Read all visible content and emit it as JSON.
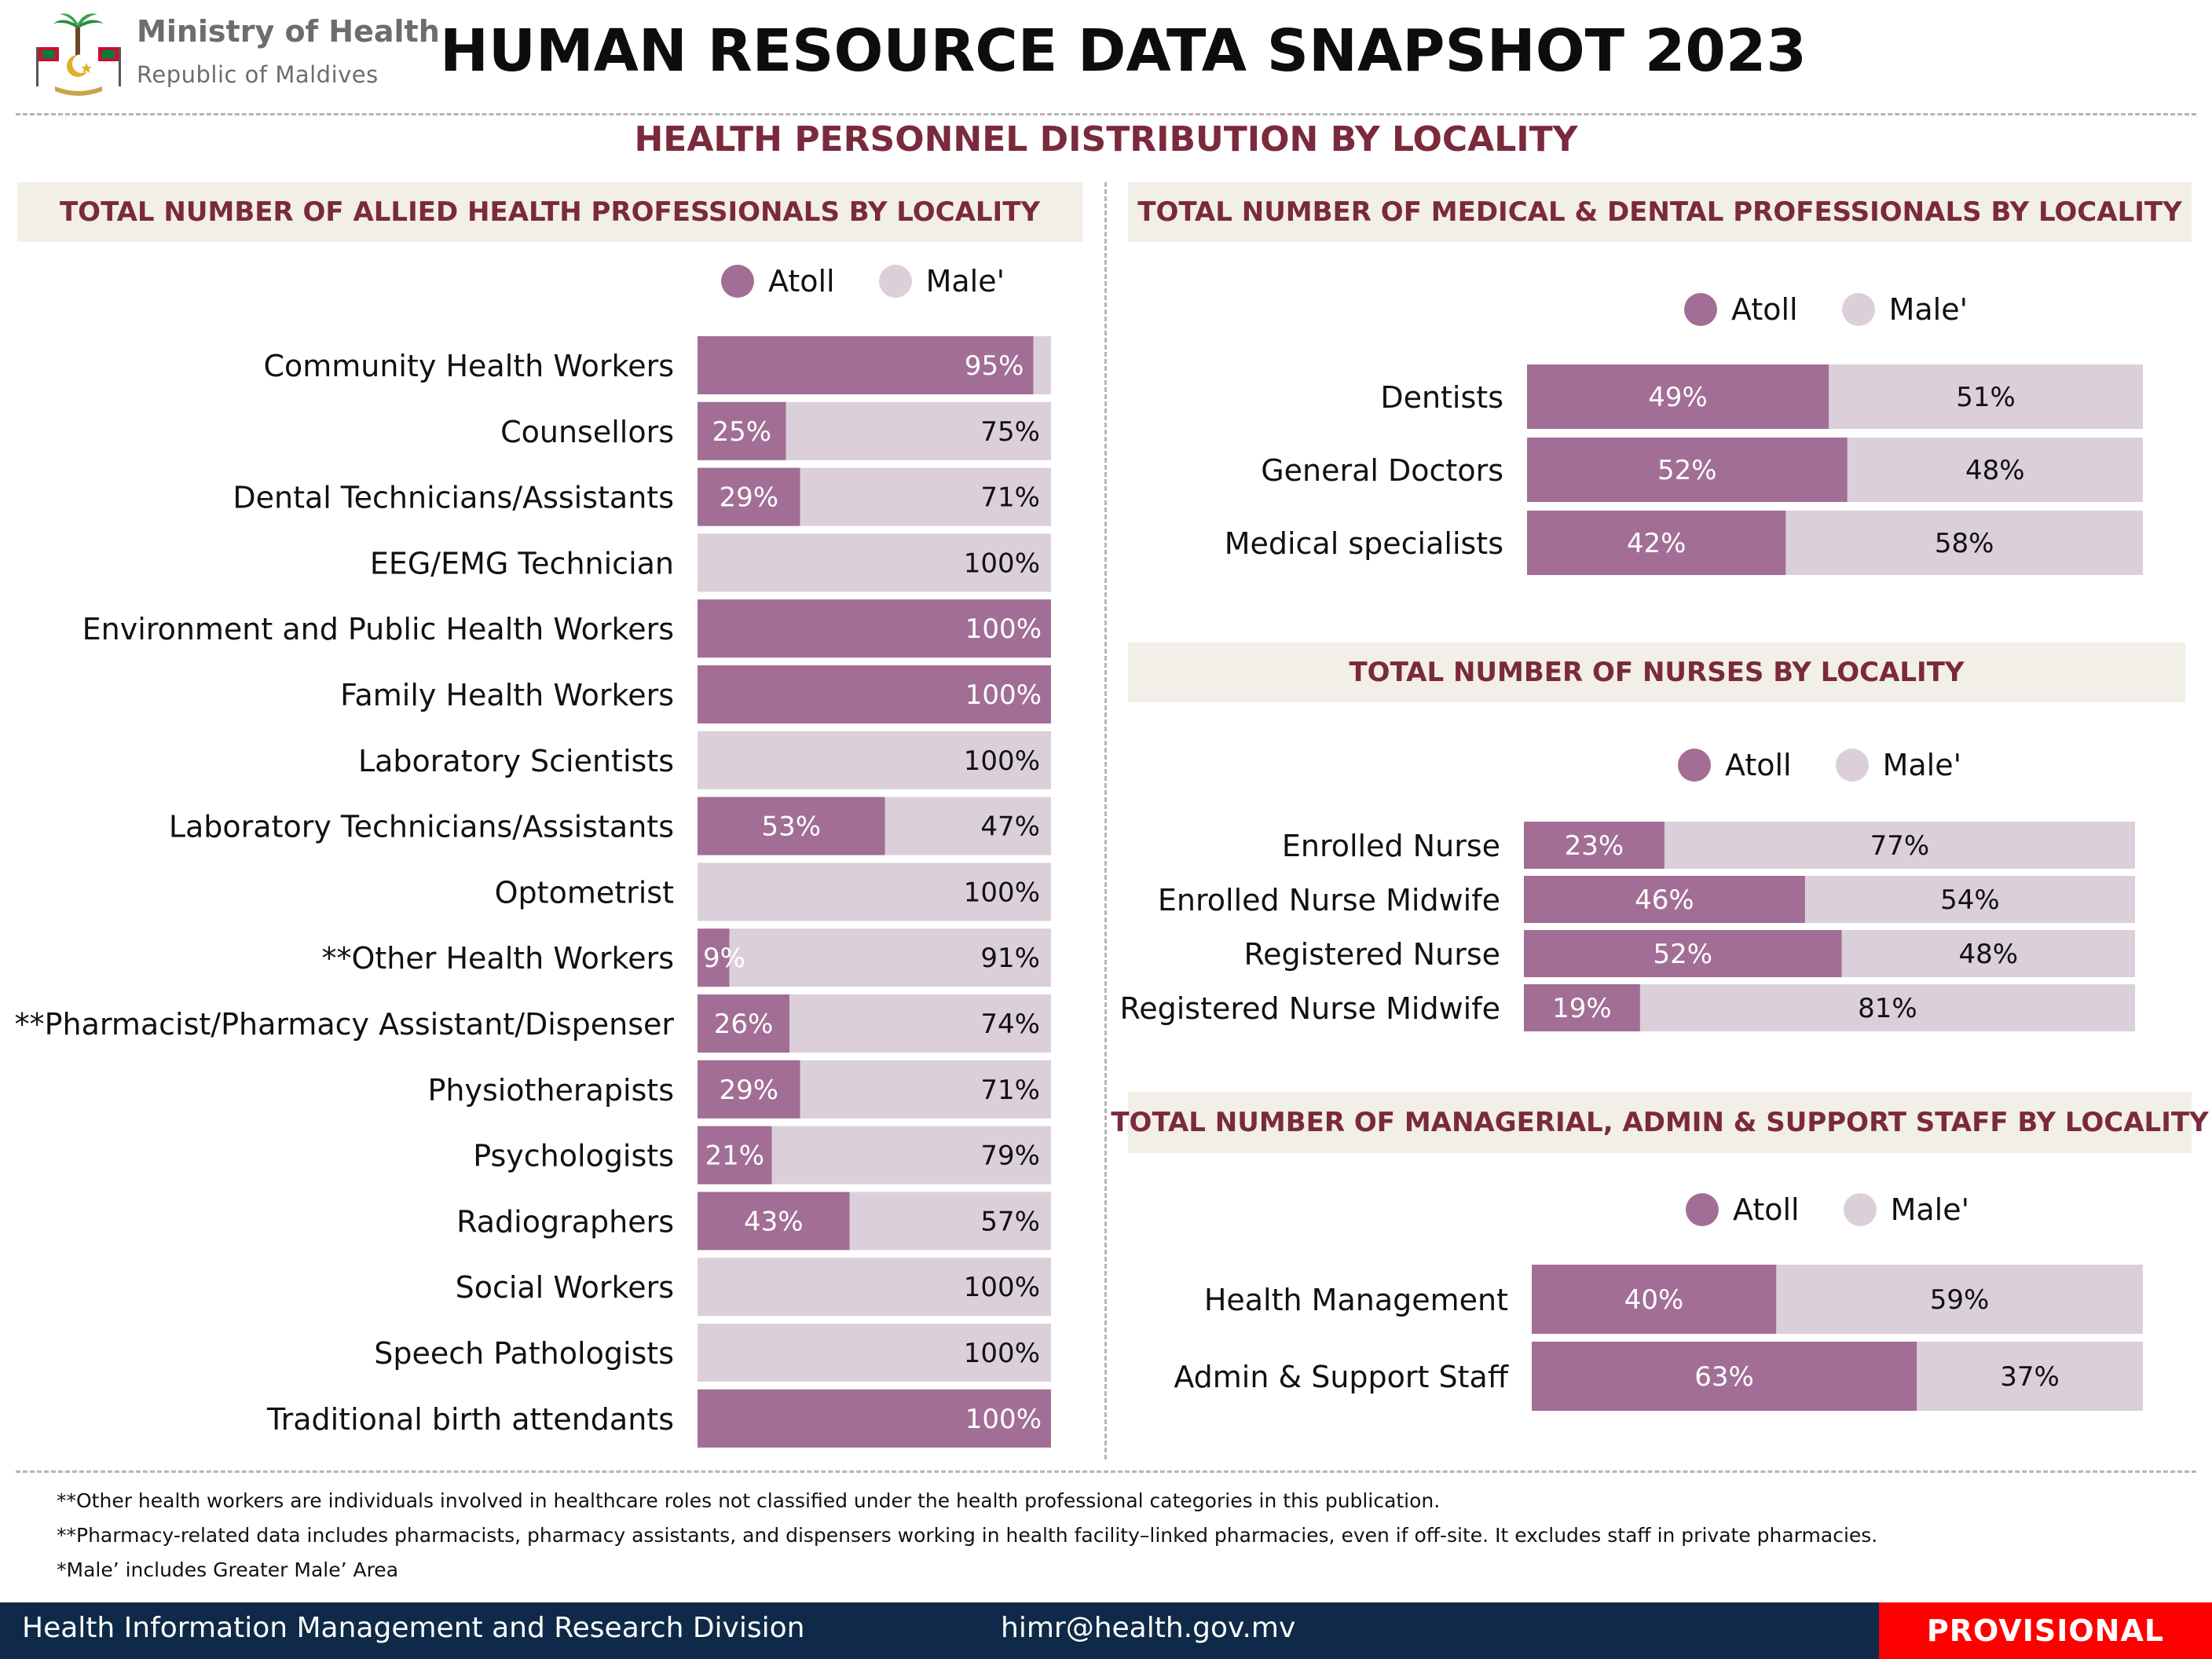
{
  "header": {
    "org_name": "Ministry of Health",
    "org_sub": "Republic of Maldives",
    "title": "HUMAN RESOURCE DATA SNAPSHOT 2023",
    "subtitle": "HEALTH PERSONNEL DISTRIBUTION BY LOCALITY"
  },
  "colors": {
    "atoll": "#a26e95",
    "male": "#dbd0da",
    "accent": "#7a2a3b",
    "footer": "#0e2a48",
    "badge": "#ff0000"
  },
  "legend": {
    "atoll": "Atoll",
    "male": "Male'"
  },
  "chart_data": [
    {
      "id": "allied",
      "type": "bar",
      "orientation": "horizontal",
      "stacked": true,
      "title": "TOTAL NUMBER OF ALLIED HEALTH PROFESSIONALS BY LOCALITY",
      "categories": [
        "Community Health Workers",
        "Counsellors",
        "Dental Technicians/Assistants",
        "EEG/EMG Technician",
        "Environment and Public Health Workers",
        "Family Health Workers",
        "Laboratory Scientists",
        "Laboratory Technicians/Assistants",
        "Optometrist",
        "**Other Health Workers",
        "**Pharmacist/Pharmacy Assistant/Dispenser",
        "Physiotherapists",
        "Psychologists",
        "Radiographers",
        "Social Workers",
        "Speech Pathologists",
        "Traditional birth attendants"
      ],
      "series": [
        {
          "name": "Atoll",
          "values": [
            95,
            25,
            29,
            0,
            100,
            100,
            0,
            53,
            0,
            9,
            26,
            29,
            21,
            43,
            0,
            0,
            100
          ]
        },
        {
          "name": "Male'",
          "values": [
            5,
            75,
            71,
            100,
            0,
            0,
            100,
            47,
            100,
            91,
            74,
            71,
            79,
            57,
            100,
            100,
            0
          ]
        }
      ],
      "labels": [
        [
          "95%",
          ""
        ],
        [
          "25%",
          "75%"
        ],
        [
          "29%",
          "71%"
        ],
        [
          "",
          "100%"
        ],
        [
          "100%",
          ""
        ],
        [
          "100%",
          ""
        ],
        [
          "",
          "100%"
        ],
        [
          "53%",
          "47%"
        ],
        [
          "",
          "100%"
        ],
        [
          "9%",
          "91%"
        ],
        [
          "26%",
          "74%"
        ],
        [
          "29%",
          "71%"
        ],
        [
          "21%",
          "79%"
        ],
        [
          "43%",
          "57%"
        ],
        [
          "",
          "100%"
        ],
        [
          "",
          "100%"
        ],
        [
          "100%",
          ""
        ]
      ],
      "unit": "%",
      "xlim": [
        0,
        100
      ],
      "legend": "top"
    },
    {
      "id": "medical",
      "type": "bar",
      "orientation": "horizontal",
      "stacked": true,
      "title": "TOTAL NUMBER OF MEDICAL & DENTAL PROFESSIONALS BY LOCALITY",
      "categories": [
        "Dentists",
        "General Doctors",
        "Medical specialists"
      ],
      "series": [
        {
          "name": "Atoll",
          "values": [
            49,
            52,
            42
          ]
        },
        {
          "name": "Male'",
          "values": [
            51,
            48,
            58
          ]
        }
      ],
      "labels": [
        [
          "49%",
          "51%"
        ],
        [
          "52%",
          "48%"
        ],
        [
          "42%",
          "58%"
        ]
      ],
      "unit": "%",
      "xlim": [
        0,
        100
      ],
      "legend": "top"
    },
    {
      "id": "nurses",
      "type": "bar",
      "orientation": "horizontal",
      "stacked": true,
      "title": "TOTAL NUMBER OF NURSES BY LOCALITY",
      "categories": [
        "Enrolled Nurse",
        "Enrolled Nurse Midwife",
        "Registered Nurse",
        "Registered Nurse Midwife"
      ],
      "series": [
        {
          "name": "Atoll",
          "values": [
            23,
            46,
            52,
            19
          ]
        },
        {
          "name": "Male'",
          "values": [
            77,
            54,
            48,
            81
          ]
        }
      ],
      "labels": [
        [
          "23%",
          "77%"
        ],
        [
          "46%",
          "54%"
        ],
        [
          "52%",
          "48%"
        ],
        [
          "19%",
          "81%"
        ]
      ],
      "unit": "%",
      "xlim": [
        0,
        100
      ],
      "legend": "top"
    },
    {
      "id": "managerial",
      "type": "bar",
      "orientation": "horizontal",
      "stacked": true,
      "title": "TOTAL NUMBER OF MANAGERIAL, ADMIN & SUPPORT STAFF BY LOCALITY",
      "categories": [
        "Health Management",
        "Admin & Support Staff"
      ],
      "series": [
        {
          "name": "Atoll",
          "values": [
            40,
            63
          ]
        },
        {
          "name": "Male'",
          "values": [
            59,
            37
          ]
        }
      ],
      "labels": [
        [
          "40%",
          "59%"
        ],
        [
          "63%",
          "37%"
        ]
      ],
      "unit": "%",
      "xlim": [
        0,
        100
      ],
      "legend": "top"
    }
  ],
  "notes": [
    "**Other health workers are individuals involved in healthcare roles not classified under the health professional categories in this publication.",
    "**Pharmacy-related data includes pharmacists, pharmacy assistants, and dispensers working in health facility–linked pharmacies, even if off-site. It excludes staff in private pharmacies.",
    "*Male’ includes Greater Male’ Area"
  ],
  "footer": {
    "division": "Health Information Management and Research Division",
    "email": "himr@health.gov.mv",
    "status": "PROVISIONAL"
  }
}
